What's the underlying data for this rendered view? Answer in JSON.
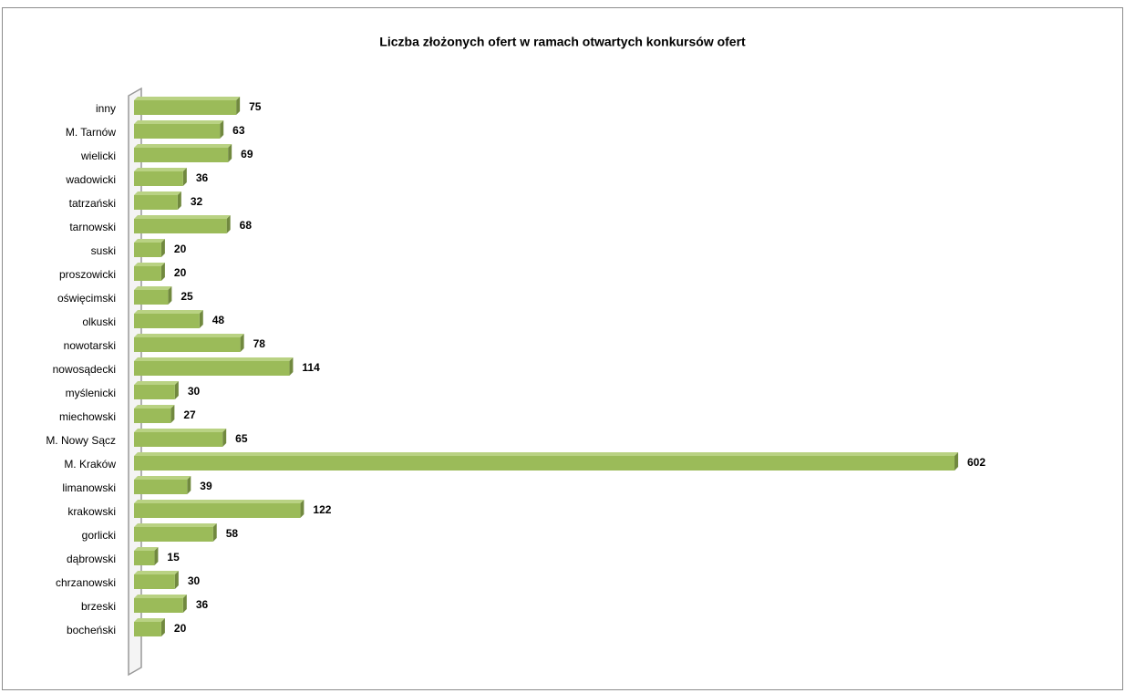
{
  "chart_data": {
    "type": "bar",
    "orientation": "horizontal",
    "title": "Liczba złożonych ofert w ramach otwartych konkursów ofert",
    "categories": [
      "inny",
      "M. Tarnów",
      "wielicki",
      "wadowicki",
      "tatrzański",
      "tarnowski",
      "suski",
      "proszowicki",
      "oświęcimski",
      "olkuski",
      "nowotarski",
      "nowosądecki",
      "myślenicki",
      "miechowski",
      "M. Nowy Sącz",
      "M. Kraków",
      "limanowski",
      "krakowski",
      "gorlicki",
      "dąbrowski",
      "chrzanowski",
      "brzeski",
      "bocheński"
    ],
    "values": [
      75,
      63,
      69,
      36,
      32,
      68,
      20,
      20,
      25,
      48,
      78,
      114,
      30,
      27,
      65,
      602,
      39,
      122,
      58,
      15,
      30,
      36,
      20
    ],
    "color": "#9bbb59"
  }
}
